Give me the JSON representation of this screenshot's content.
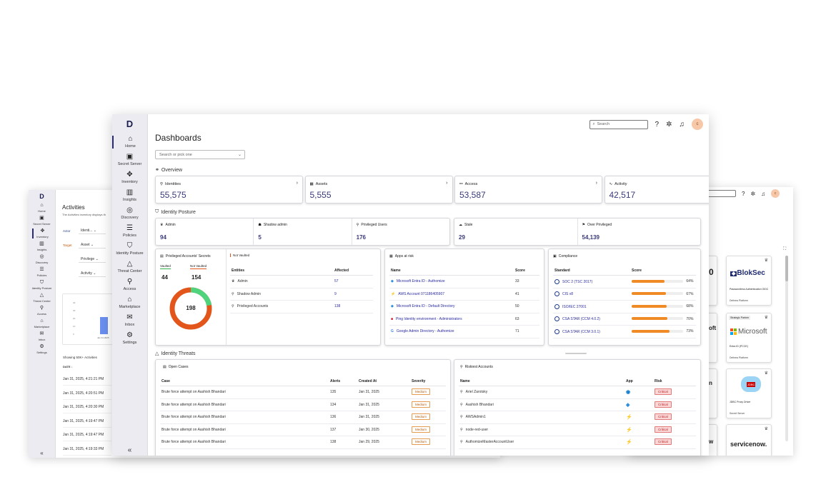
{
  "left_window": {
    "sidebar": [
      {
        "label": "Home",
        "icon": "⌂"
      },
      {
        "label": "Secret Server",
        "icon": "▣"
      },
      {
        "label": "Inventory",
        "icon": "✥"
      },
      {
        "label": "Insights",
        "icon": "▥"
      },
      {
        "label": "Discovery",
        "icon": "◎"
      },
      {
        "label": "Policies",
        "icon": "☰"
      },
      {
        "label": "Identity Posture",
        "icon": "⛉"
      },
      {
        "label": "Threat Center",
        "icon": "△"
      },
      {
        "label": "Access",
        "icon": "⚲"
      },
      {
        "label": "Marketplace",
        "icon": "⌂"
      },
      {
        "label": "Inbox",
        "icon": "✉"
      },
      {
        "label": "Settings",
        "icon": "⚙"
      }
    ],
    "title": "Activities",
    "subtitle": "The Activities inventory displays th",
    "filters": [
      {
        "label": "Actor",
        "value": "Identi..."
      },
      {
        "label": "Target",
        "value": "Asset"
      },
      {
        "label": "",
        "value": "Privilege"
      },
      {
        "label": "",
        "value": "Activity"
      }
    ],
    "chart_axis": [
      "40",
      "30",
      "20",
      "10",
      "0"
    ],
    "chart_label": "Jan 31 2025",
    "count_text": "Showing 50K+ Activities",
    "date_header": "DATE ↓",
    "rows": [
      "Jan 31, 2025, 4:21:21 PM",
      "Jan 31, 2025, 4:20:51 PM",
      "Jan 31, 2025, 4:20:30 PM",
      "Jan 31, 2025, 4:19:47 PM",
      "Jan 31, 2025, 4:19:47 PM",
      "Jan 31, 2025, 4:19:33 PM"
    ]
  },
  "right_window": {
    "tiles": [
      {
        "name": "BlokSec",
        "desc": "Passwordless Authentication OIDC",
        "platform": "Delinea Platform",
        "tag": ""
      },
      {
        "name": "Microsoft",
        "desc": "Entra ID (PCCE)",
        "platform": "Delinea Platform",
        "tag": "Strategic Partner"
      },
      {
        "name": "JDBC",
        "desc": "JDBC Proxy Driver",
        "platform": "Secret Server",
        "tag": ""
      },
      {
        "name": "servicenow.",
        "desc": "",
        "platform": "",
        "tag": ""
      }
    ],
    "partial_left": [
      "0",
      "oft",
      "n",
      "w"
    ]
  },
  "main": {
    "logo": "D",
    "sidebar": [
      {
        "label": "Home",
        "icon": "⌂"
      },
      {
        "label": "Secret Server",
        "icon": "▣"
      },
      {
        "label": "Inventory",
        "icon": "✥"
      },
      {
        "label": "Insights",
        "icon": "▥"
      },
      {
        "label": "Discovery",
        "icon": "◎"
      },
      {
        "label": "Policies",
        "icon": "☰"
      },
      {
        "label": "Identity Posture",
        "icon": "⛉"
      },
      {
        "label": "Threat Center",
        "icon": "△"
      },
      {
        "label": "Access",
        "icon": "⚲"
      },
      {
        "label": "Marketplace",
        "icon": "⌂"
      },
      {
        "label": "Inbox",
        "icon": "✉"
      },
      {
        "label": "Settings",
        "icon": "⚙"
      }
    ],
    "collapse": "«",
    "title": "Dashboards",
    "picker_placeholder": "Search or pick one",
    "search_placeholder": "Search",
    "avatar": "c",
    "overview_heading": "Overview",
    "overview": [
      {
        "label": "Identities",
        "value": "55,575",
        "icon": "⚲"
      },
      {
        "label": "Assets",
        "value": "5,555",
        "icon": "▦"
      },
      {
        "label": "Access",
        "value": "53,587",
        "icon": "⚯"
      },
      {
        "label": "Activity",
        "value": "42,517",
        "icon": "∿"
      }
    ],
    "posture_heading": "Identity Posture",
    "posture_left": [
      {
        "label": "Admin",
        "value": "94",
        "icon": "♛"
      },
      {
        "label": "Shadow admin",
        "value": "5",
        "icon": "☗"
      },
      {
        "label": "Privileged Users",
        "value": "176",
        "icon": "⚲"
      }
    ],
    "posture_right": [
      {
        "label": "Stale",
        "value": "29",
        "icon": "☁"
      },
      {
        "label": "Over Privileged",
        "value": "54,139",
        "icon": "⚑"
      }
    ],
    "secrets": {
      "title": "Privileged Accounts' Secrets",
      "vaulted_label": "Vaulted",
      "not_vaulted_label": "Not Vaulted",
      "vaulted": "44",
      "not_vaulted": "154",
      "total": "198",
      "tab": "Not Vaulted",
      "col_entities": "Entities",
      "col_affected": "Affected",
      "rows": [
        {
          "icon": "♛",
          "name": "Admin",
          "value": "57"
        },
        {
          "icon": "⚲",
          "name": "Shadow Admin",
          "value": "9"
        },
        {
          "icon": "⚲",
          "name": "Privileged Accounts",
          "value": "138"
        }
      ]
    },
    "apps": {
      "title": "Apps at risk",
      "col_name": "Name",
      "col_score": "Score",
      "rows": [
        {
          "name": "Microsoft Entra ID - Authomize",
          "score": "33",
          "icon": "◆",
          "color": "#2b8fe0"
        },
        {
          "name": "AWS Account 071186405907",
          "score": "41",
          "icon": "⚡",
          "color": "#f29b1f"
        },
        {
          "name": "Microsoft Entra ID - Default Directory",
          "score": "50",
          "icon": "◆",
          "color": "#2b8fe0"
        },
        {
          "name": "Ping Identity environment - Administrators",
          "score": "63",
          "icon": "■",
          "color": "#c8102e"
        },
        {
          "name": "Google Admin Directory - Authomize",
          "score": "71",
          "icon": "G",
          "color": "#4285f4"
        }
      ]
    },
    "compliance": {
      "title": "Compliance",
      "col_standard": "Standard",
      "col_score": "Score",
      "rows": [
        {
          "name": "SOC 2 (TSC 2017)",
          "score": "64%",
          "pct": 64
        },
        {
          "name": "CIS v8",
          "score": "67%",
          "pct": 67
        },
        {
          "name": "ISO/IEC 27001",
          "score": "68%",
          "pct": 68
        },
        {
          "name": "CSA STAR (CCM 4.0.2)",
          "score": "70%",
          "pct": 70
        },
        {
          "name": "CSA STAR (CCM 3.0.1)",
          "score": "73%",
          "pct": 73
        }
      ]
    },
    "threats_heading": "Identity Threats",
    "cases": {
      "title": "Open Cases",
      "cols": [
        "Case",
        "Alerts",
        "Created At",
        "Severity"
      ],
      "rows": [
        {
          "case": "Brute force attempt on Aashish Bhandari",
          "alerts": "135",
          "date": "Jan 31, 2025",
          "sev": "Medium"
        },
        {
          "case": "Brute force attempt on Aashish Bhandari",
          "alerts": "134",
          "date": "Jan 31, 2025",
          "sev": "Medium"
        },
        {
          "case": "Brute force attempt on Aashish Bhandari",
          "alerts": "136",
          "date": "Jan 31, 2025",
          "sev": "Medium"
        },
        {
          "case": "Brute force attempt on Aashish Bhandari",
          "alerts": "137",
          "date": "Jan 30, 2025",
          "sev": "Medium"
        },
        {
          "case": "Brute force attempt on Aashish Bhandari",
          "alerts": "138",
          "date": "Jan 29, 2025",
          "sev": "Medium"
        }
      ]
    },
    "riskiest": {
      "title": "Riskiest Accounts",
      "cols": [
        "Name",
        "App",
        "Risk"
      ],
      "rows": [
        {
          "name": "Ariel Zarotsky",
          "app": "◉",
          "color": "#0a78c8",
          "risk": "Critical"
        },
        {
          "name": "Aashish Bhandari",
          "app": "◆",
          "color": "#2b8fe0",
          "risk": "Critical"
        },
        {
          "name": "AWSAdmin1",
          "app": "⚡",
          "color": "#f29b1f",
          "risk": "Critical"
        },
        {
          "name": "node-red-user",
          "app": "⚡",
          "color": "#f29b1f",
          "risk": "Critical"
        },
        {
          "name": "AuthomizeMasterAccountUser",
          "app": "⚡",
          "color": "#f29b1f",
          "risk": "Critical"
        }
      ]
    }
  }
}
